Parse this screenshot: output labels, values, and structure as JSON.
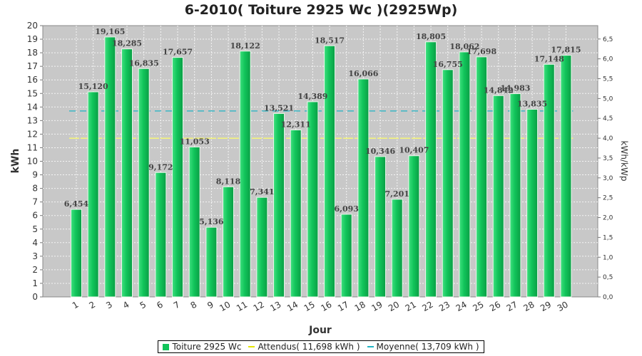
{
  "chart_data": {
    "type": "bar",
    "title": "6-2010( Toiture 2925 Wc )(2925Wp)",
    "xlabel": "Jour",
    "ylabel": "kWh",
    "y2label": "kWh/kWp",
    "ylim": [
      0,
      20
    ],
    "y2lim": [
      0,
      6.837
    ],
    "yticks": [
      "0",
      "1",
      "2",
      "3",
      "4",
      "5",
      "6",
      "7",
      "8",
      "9",
      "10",
      "11",
      "12",
      "13",
      "14",
      "15",
      "16",
      "17",
      "18",
      "19",
      "20"
    ],
    "y2ticks": [
      "0,0",
      "0,5",
      "1,0",
      "1,5",
      "2,0",
      "2,5",
      "3,0",
      "3,5",
      "4,0",
      "4,5",
      "5,0",
      "5,5",
      "6,0",
      "6,5"
    ],
    "grid": true,
    "legend_position": "bottom",
    "categories": [
      "1",
      "2",
      "3",
      "4",
      "5",
      "6",
      "7",
      "8",
      "9",
      "10",
      "11",
      "12",
      "13",
      "14",
      "15",
      "16",
      "17",
      "18",
      "19",
      "20",
      "21",
      "22",
      "23",
      "24",
      "25",
      "26",
      "27",
      "28",
      "29",
      "30"
    ],
    "bar_labels": [
      "6,454",
      "15,120",
      "19,165",
      "18,285",
      "16,835",
      "9,172",
      "17,657",
      "11,053",
      "5,136",
      "8,118",
      "18,122",
      "7,341",
      "13,521",
      "12,311",
      "14,389",
      "18,517",
      "6,093",
      "16,066",
      "10,346",
      "7,201",
      "10,407",
      "18,805",
      "16,755",
      "18,062",
      "17,698",
      "14,842",
      "14,983",
      "13,835",
      "17,148",
      "17,815"
    ],
    "series": [
      {
        "name": "Toiture 2925 Wc",
        "color": "#11c45a",
        "values": [
          6.454,
          15.12,
          19.165,
          18.285,
          16.835,
          9.172,
          17.657,
          11.053,
          5.136,
          8.118,
          18.122,
          7.341,
          13.521,
          12.311,
          14.389,
          18.517,
          6.093,
          16.066,
          10.346,
          7.201,
          10.407,
          18.805,
          16.755,
          18.062,
          17.698,
          14.842,
          14.983,
          13.835,
          17.148,
          17.815
        ]
      }
    ],
    "reference_lines": [
      {
        "name": "Attendus( 11,698 kWh )",
        "value": 11.698,
        "color": "#ffff66"
      },
      {
        "name": "Moyenne( 13,709 kWh )",
        "value": 13.709,
        "color": "#1fb3c4"
      }
    ]
  }
}
